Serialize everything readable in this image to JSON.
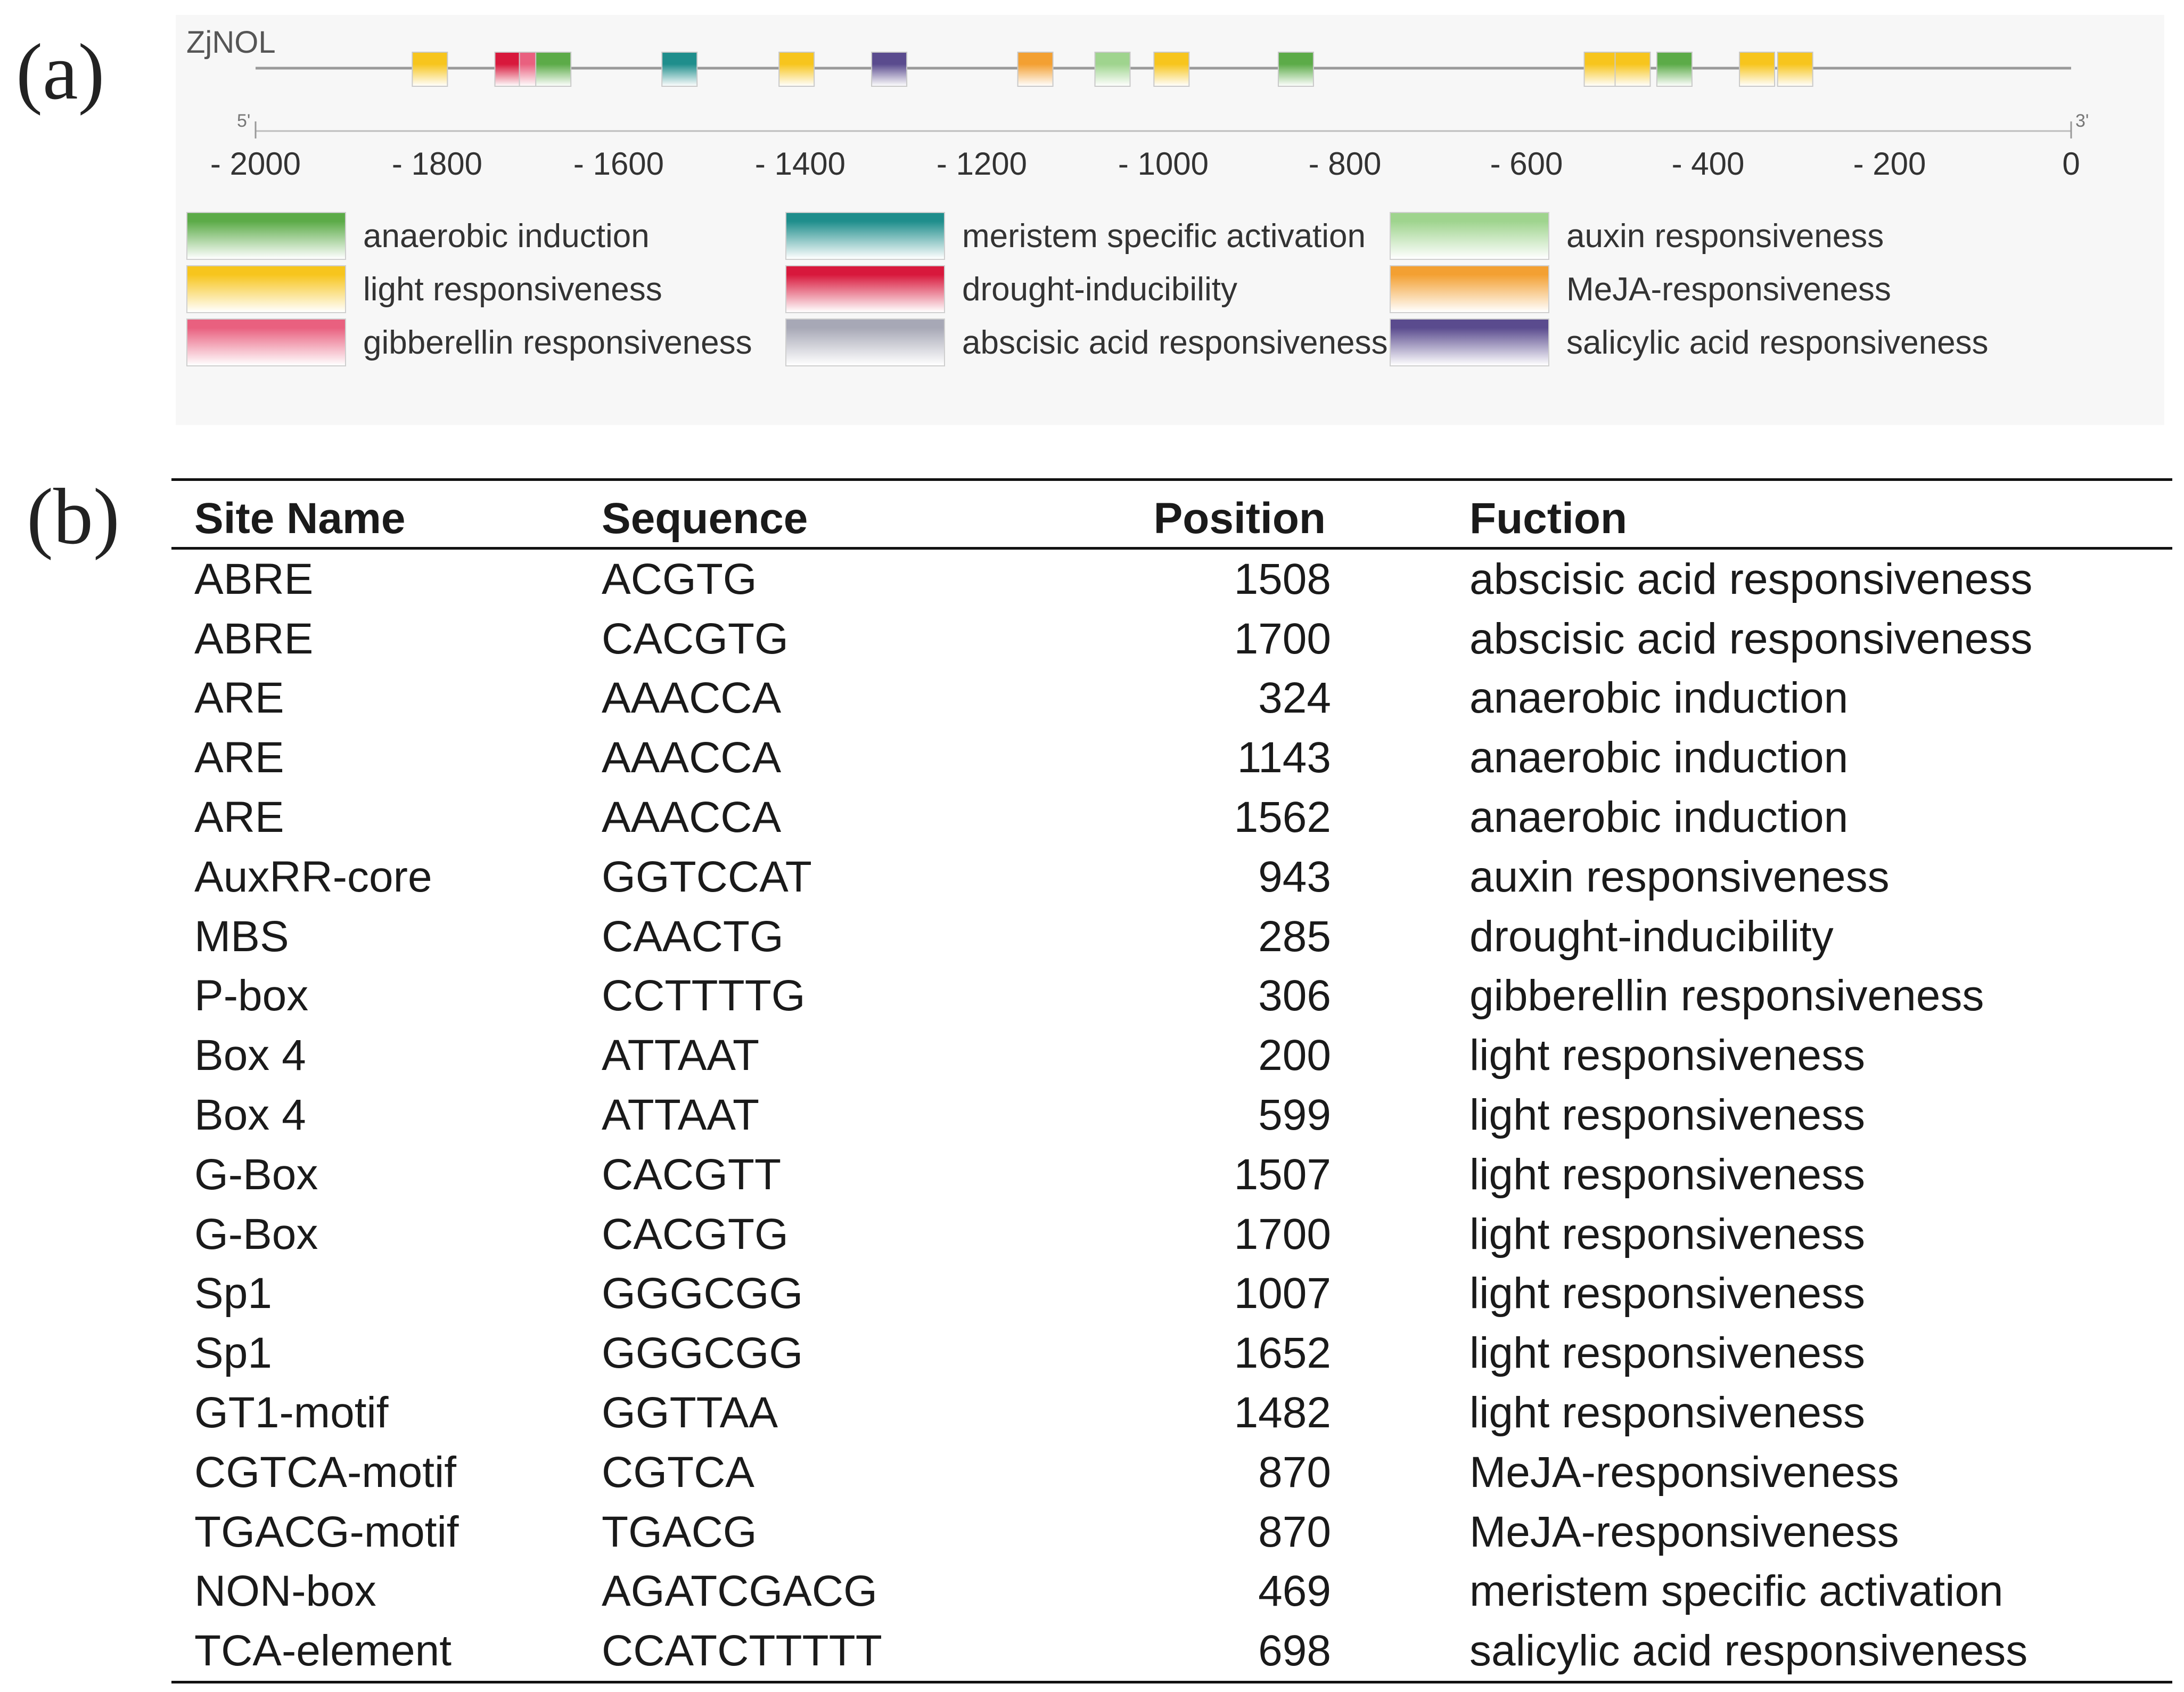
{
  "panel_a": {
    "label": "(a)",
    "gene_name": "ZjNOL",
    "end5": "5'",
    "end3": "3'",
    "axis_ticks": [
      "- 2000",
      "- 1800",
      "- 1600",
      "- 1400",
      "- 1200",
      "- 1000",
      "- 800",
      "- 600",
      "- 400",
      "- 200",
      "0"
    ],
    "axis_values": [
      -2000,
      -1800,
      -1600,
      -1400,
      -1200,
      -1000,
      -800,
      -600,
      -400,
      -200,
      0
    ],
    "elements": [
      {
        "pos": -1808,
        "type": "light"
      },
      {
        "pos": -1717,
        "type": "drought"
      },
      {
        "pos": -1690,
        "type": "gibberellin"
      },
      {
        "pos": -1672,
        "type": "anaerobic"
      },
      {
        "pos": -1533,
        "type": "meristem"
      },
      {
        "pos": -1404,
        "type": "light"
      },
      {
        "pos": -1302,
        "type": "salicylic"
      },
      {
        "pos": -1141,
        "type": "meja"
      },
      {
        "pos": -1056,
        "type": "auxin"
      },
      {
        "pos": -991,
        "type": "light"
      },
      {
        "pos": -854,
        "type": "anaerobic"
      },
      {
        "pos": -517,
        "type": "light"
      },
      {
        "pos": -483,
        "type": "light"
      },
      {
        "pos": -437,
        "type": "anaerobic"
      },
      {
        "pos": -346,
        "type": "light"
      },
      {
        "pos": -304,
        "type": "light"
      }
    ],
    "legend": [
      {
        "type": "anaerobic",
        "label": "anaerobic induction",
        "color": "#5cab48"
      },
      {
        "type": "meristem",
        "label": "meristem specific activation",
        "color": "#1f8e8c"
      },
      {
        "type": "auxin",
        "label": "auxin responsiveness",
        "color": "#9fd48e"
      },
      {
        "type": "light",
        "label": "light responsiveness",
        "color": "#f7c51d"
      },
      {
        "type": "drought",
        "label": "drought-inducibility",
        "color": "#d8183c"
      },
      {
        "type": "meja",
        "label": "MeJA-responsiveness",
        "color": "#f3a032"
      },
      {
        "type": "gibberellin",
        "label": "gibberellin responsiveness",
        "color": "#e9607f"
      },
      {
        "type": "abscisic",
        "label": "abscisic acid responsiveness",
        "color": "#a7a8b6"
      },
      {
        "type": "salicylic",
        "label": "salicylic acid responsiveness",
        "color": "#5a4b8e"
      }
    ]
  },
  "panel_b": {
    "label": "(b)",
    "headers": [
      "Site Name",
      "Sequence",
      "Position",
      "Fuction"
    ],
    "rows": [
      [
        "ABRE",
        "ACGTG",
        "1508",
        "abscisic acid responsiveness"
      ],
      [
        "ABRE",
        "CACGTG",
        "1700",
        "abscisic acid responsiveness"
      ],
      [
        "ARE",
        "AAACCA",
        "324",
        "anaerobic induction"
      ],
      [
        "ARE",
        "AAACCA",
        "1143",
        "anaerobic induction"
      ],
      [
        "ARE",
        "AAACCA",
        "1562",
        "anaerobic induction"
      ],
      [
        "AuxRR-core",
        "GGTCCAT",
        "943",
        "auxin responsiveness"
      ],
      [
        "MBS",
        "CAACTG",
        "285",
        "drought-inducibility"
      ],
      [
        "P-box",
        "CCTTTTG",
        "306",
        "gibberellin responsiveness"
      ],
      [
        "Box 4",
        "ATTAAT",
        "200",
        "light responsiveness"
      ],
      [
        "Box 4",
        "ATTAAT",
        "599",
        "light responsiveness"
      ],
      [
        "G-Box",
        "CACGTT",
        "1507",
        "light responsiveness"
      ],
      [
        "G-Box",
        "CACGTG",
        "1700",
        "light responsiveness"
      ],
      [
        "Sp1",
        "GGGCGG",
        "1007",
        "light responsiveness"
      ],
      [
        "Sp1",
        "GGGCGG",
        "1652",
        "light responsiveness"
      ],
      [
        "GT1-motif",
        "GGTTAA",
        "1482",
        "light responsiveness"
      ],
      [
        "CGTCA-motif",
        "CGTCA",
        "870",
        "MeJA-responsiveness"
      ],
      [
        "TGACG-motif",
        "TGACG",
        "870",
        "MeJA-responsiveness"
      ],
      [
        "NON-box",
        "AGATCGACG",
        "469",
        "meristem specific activation"
      ],
      [
        "TCA-element",
        "CCATCTTTTT",
        "698",
        "salicylic acid responsiveness"
      ]
    ]
  }
}
